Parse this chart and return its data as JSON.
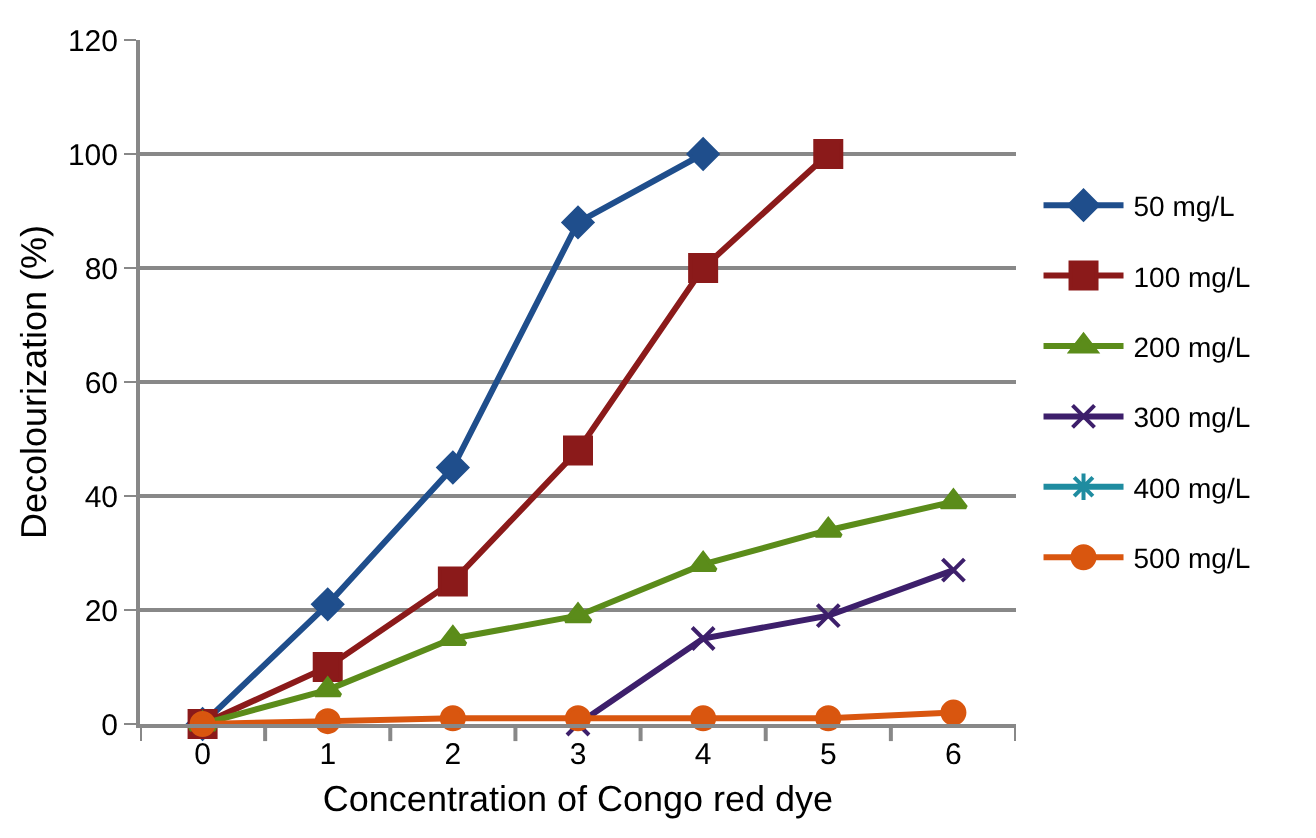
{
  "chart_data": {
    "type": "line",
    "xlabel": "Concentration of Congo red dye",
    "ylabel": "Decolourization (%)",
    "categories": [
      "0",
      "1",
      "2",
      "3",
      "4",
      "5",
      "6"
    ],
    "series": [
      {
        "name": "50 mg/L",
        "color": "#1f4e8c",
        "marker": "diamond",
        "values": [
          0,
          21,
          45,
          88,
          100,
          null,
          null
        ]
      },
      {
        "name": "100 mg/L",
        "color": "#8b1a1a",
        "marker": "square",
        "values": [
          0,
          10,
          25,
          48,
          80,
          100,
          null
        ]
      },
      {
        "name": "200 mg/L",
        "color": "#5b8c1a",
        "marker": "triangle",
        "values": [
          0,
          6,
          15,
          19,
          28,
          34,
          39
        ]
      },
      {
        "name": "300 mg/L",
        "color": "#3d1f6b",
        "marker": "cross",
        "values": [
          null,
          null,
          null,
          0,
          15,
          19,
          27
        ]
      },
      {
        "name": "400 mg/L",
        "color": "#1f8ca0",
        "marker": "star",
        "values": [
          null,
          null,
          null,
          null,
          null,
          null,
          null
        ]
      },
      {
        "name": "500 mg/L",
        "color": "#d9560f",
        "marker": "circle",
        "values": [
          0,
          0.5,
          1,
          1,
          1,
          1,
          2
        ]
      }
    ],
    "ylim": [
      0,
      120
    ],
    "yticks": [
      0,
      20,
      40,
      60,
      80,
      100,
      120
    ],
    "grid": "y",
    "legend": "right",
    "line_style": "solid"
  }
}
